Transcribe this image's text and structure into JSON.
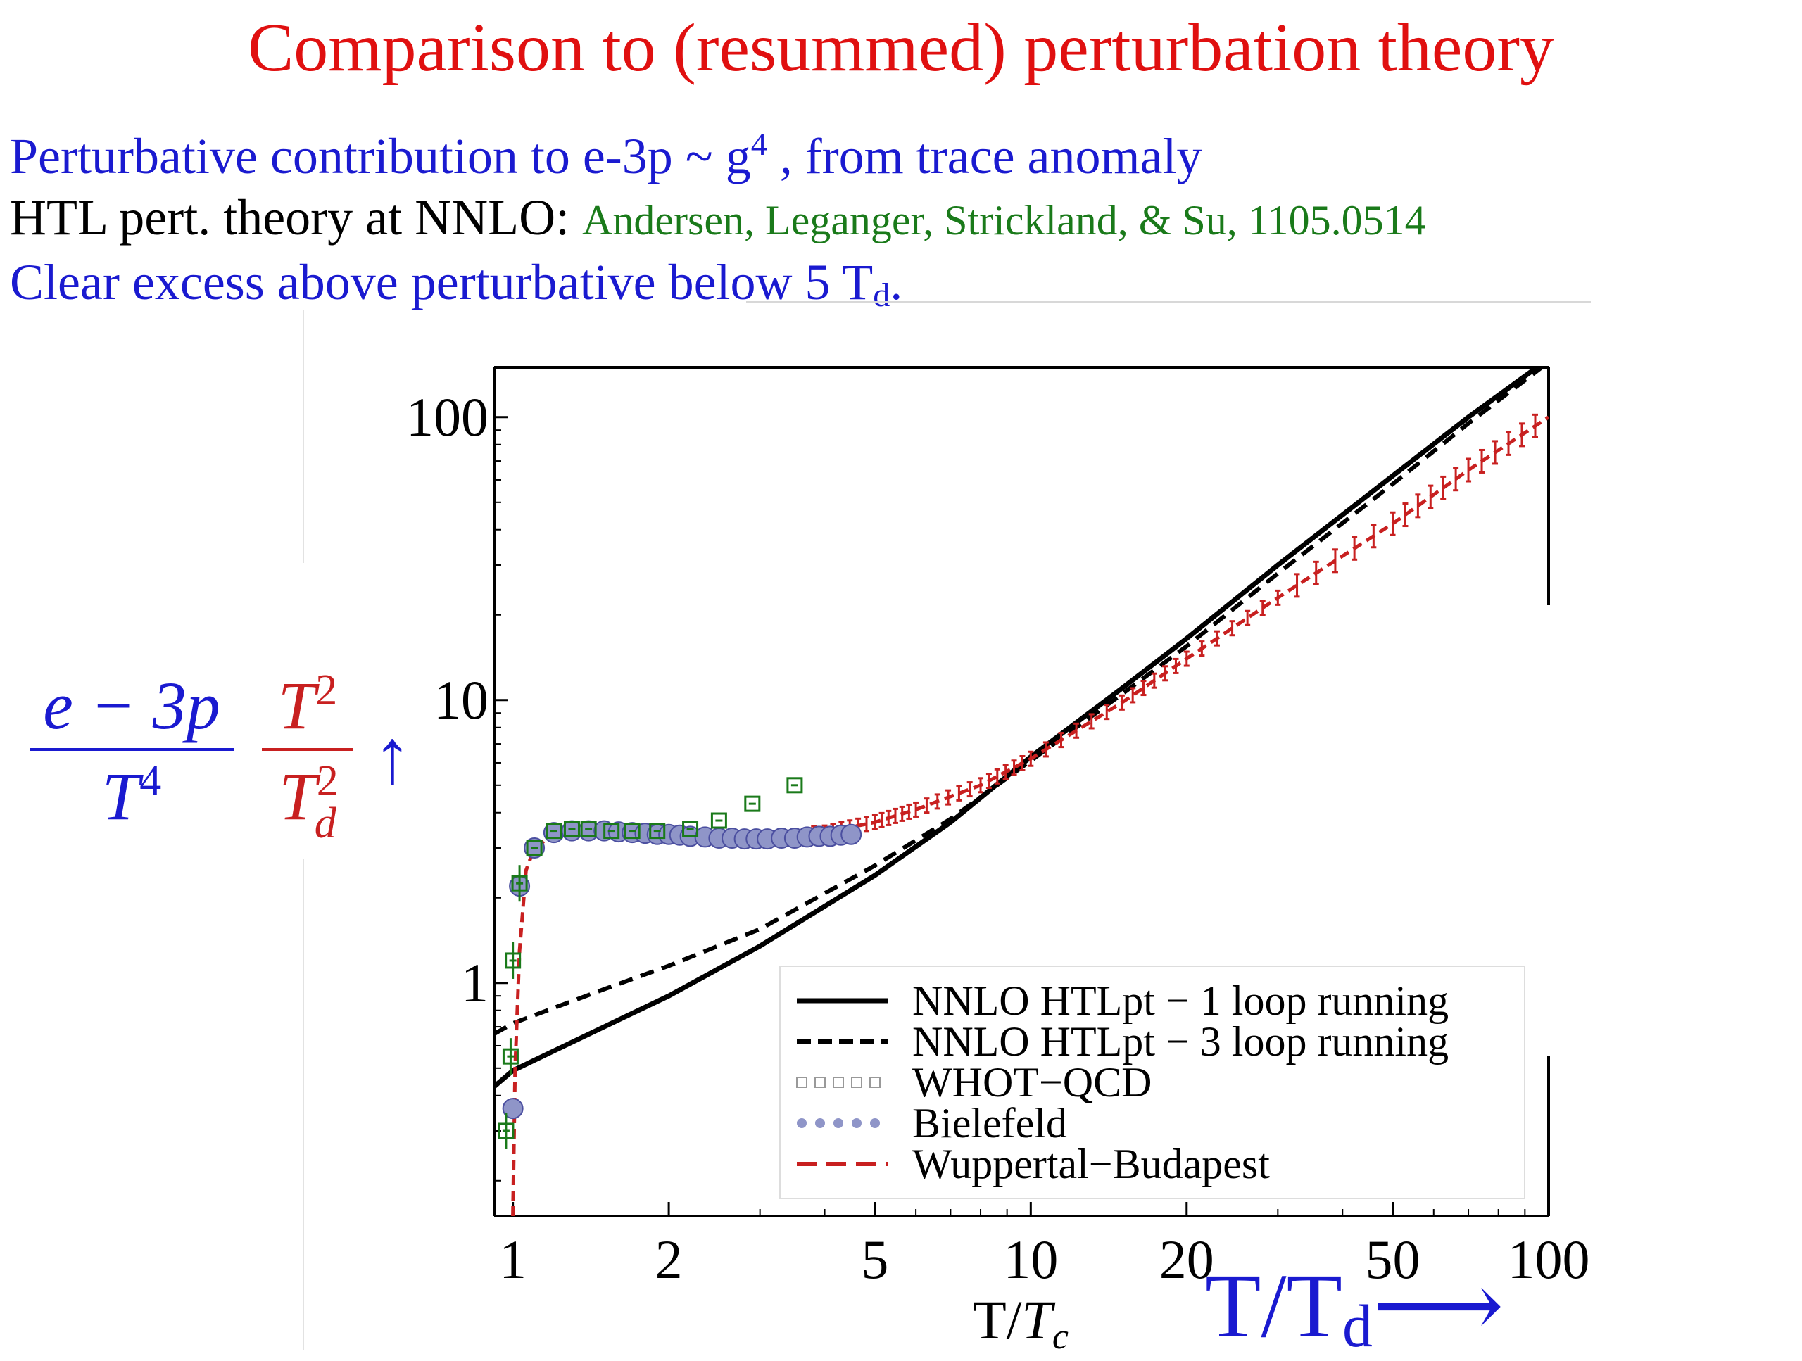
{
  "slide": {
    "title": "Comparison to (resummed) perturbation theory",
    "line1_a": "Perturbative contribution to e-3p ~ g",
    "line1_sup": "4",
    "line1_b": " , from trace anomaly",
    "line2_a": "HTL pert. theory at NNLO: ",
    "line2_ref": "Andersen, Leganger, Strickland, & Su, 1105.0514",
    "line3_a": "Clear excess above perturbative below 5 T",
    "line3_sub": "d",
    "line3_b": "."
  },
  "ylabel_formula": {
    "frac1_num": "e − 3p",
    "frac1_den": "T",
    "frac1_den_sup": "4",
    "frac2_num": "T",
    "frac2_num_sup": "2",
    "frac2_den": "T",
    "frac2_den_sup": "2",
    "frac2_den_sub": "d",
    "arrow": "↑"
  },
  "xlabel_big": {
    "main": "T/T",
    "sub": "d",
    "arrow": "⟶"
  },
  "colors": {
    "red": "#c82020",
    "blue": "#1a1ad0",
    "green": "#1a7a1a",
    "black": "#000000",
    "points": "#8f95c8"
  },
  "chart_data": {
    "type": "line",
    "xscale": "log",
    "yscale": "log",
    "xlim": [
      0.92,
      100
    ],
    "ylim": [
      0.15,
      150
    ],
    "xticks": [
      1,
      2,
      5,
      10,
      20,
      50,
      100
    ],
    "xtick_labels": [
      "1",
      "2",
      "5",
      "10",
      "20",
      "50",
      "100"
    ],
    "yticks": [
      1,
      10,
      100
    ],
    "ytick_labels": [
      "1",
      "10",
      "100"
    ],
    "xlabel_main": "T/",
    "xlabel_ital": "T",
    "xlabel_sub": "c",
    "legend_position": "bottom-right",
    "legend": [
      {
        "label": "NNLO HTLpt − 1 loop running",
        "style": "solid"
      },
      {
        "label": "NNLO HTLpt − 3 loop running",
        "style": "dashed"
      },
      {
        "label": "WHOT−QCD",
        "style": "squares"
      },
      {
        "label": "Bielefeld",
        "style": "dots"
      },
      {
        "label": "Wuppertal−Budapest",
        "style": "red-dashed"
      }
    ],
    "series": [
      {
        "name": "NNLO HTLpt − 1 loop running",
        "x": [
          0.92,
          1,
          1.5,
          2,
          3,
          5,
          7,
          10,
          15,
          20,
          30,
          50,
          70,
          95
        ],
        "y": [
          0.43,
          0.49,
          0.7,
          0.9,
          1.35,
          2.4,
          3.7,
          6.3,
          11,
          16.5,
          30,
          62,
          100,
          150
        ]
      },
      {
        "name": "NNLO HTLpt − 3 loop running",
        "x": [
          0.92,
          1,
          1.5,
          2,
          3,
          5,
          7,
          10,
          15,
          20,
          30,
          50,
          70,
          97
        ],
        "y": [
          0.66,
          0.72,
          0.95,
          1.15,
          1.55,
          2.6,
          3.8,
          6.1,
          10.5,
          15.5,
          28,
          58,
          95,
          150
        ]
      },
      {
        "name": "WHOT−QCD",
        "x": [
          0.97,
          0.99,
          1.0,
          1.03,
          1.1,
          1.2,
          1.3,
          1.4,
          1.55,
          1.7,
          1.9,
          2.2,
          2.5,
          2.9,
          3.5
        ],
        "y": [
          0.3,
          0.55,
          1.2,
          2.25,
          3.0,
          3.45,
          3.5,
          3.5,
          3.45,
          3.45,
          3.45,
          3.5,
          3.75,
          4.3,
          5.0
        ]
      },
      {
        "name": "Bielefeld",
        "x": [
          1.0,
          1.03,
          1.1,
          1.2,
          1.3,
          1.4,
          1.5,
          1.6,
          1.7,
          1.8,
          1.9,
          2.0,
          2.1,
          2.2,
          2.35,
          2.5,
          2.65,
          2.8,
          2.95,
          3.1,
          3.3,
          3.5,
          3.7,
          3.9,
          4.1,
          4.3,
          4.5
        ],
        "y": [
          0.36,
          2.2,
          3.0,
          3.4,
          3.45,
          3.45,
          3.45,
          3.42,
          3.4,
          3.38,
          3.35,
          3.35,
          3.33,
          3.3,
          3.28,
          3.25,
          3.25,
          3.23,
          3.23,
          3.23,
          3.25,
          3.25,
          3.28,
          3.3,
          3.3,
          3.33,
          3.35
        ]
      },
      {
        "name": "Wuppertal−Budapest",
        "x": [
          1.0,
          1.01,
          1.03,
          1.06,
          1.1,
          1.2,
          1.4,
          1.7,
          2.0,
          2.5,
          3.0,
          4.0,
          5.0,
          6.0,
          8.0,
          10,
          15,
          20,
          30,
          50,
          70,
          100
        ],
        "y": [
          0.15,
          0.5,
          1.3,
          2.5,
          3.0,
          3.35,
          3.45,
          3.4,
          3.35,
          3.3,
          3.3,
          3.4,
          3.7,
          4.1,
          5.0,
          6.2,
          9.8,
          14,
          23,
          42,
          65,
          100
        ]
      }
    ]
  }
}
